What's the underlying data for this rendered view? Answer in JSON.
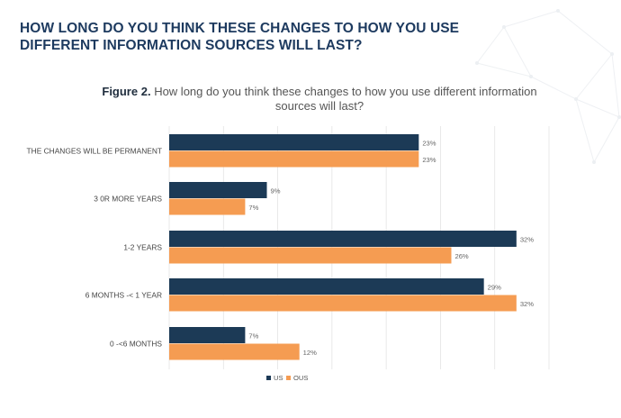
{
  "page": {
    "heading": "HOW LONG DO YOU THINK THESE CHANGES TO HOW YOU USE DIFFERENT INFORMATION SOURCES WILL LAST?",
    "figure_label": "Figure 2.",
    "figure_caption": "How long do you think these changes to how you use different information sources will last?"
  },
  "colors": {
    "us": "#1c3a56",
    "ous": "#f59c52",
    "heading": "#1d3a5f",
    "grid": "#e4e4e4"
  },
  "chart_data": {
    "type": "bar",
    "orientation": "horizontal",
    "categories": [
      "THE CHANGES WILL BE PERMANENT",
      "3 0R MORE YEARS",
      "1-2 YEARS",
      "6 MONTHS -< 1 YEAR",
      "0 -<6 MONTHS"
    ],
    "series": [
      {
        "name": "US",
        "values": [
          23,
          9,
          32,
          29,
          7
        ],
        "labels": [
          "23%",
          "9%",
          "32%",
          "29%",
          "7%"
        ]
      },
      {
        "name": "OUS",
        "values": [
          23,
          7,
          26,
          32,
          12
        ],
        "labels": [
          "23%",
          "7%",
          "26%",
          "32%",
          "12%"
        ]
      }
    ],
    "xlim": [
      0,
      35
    ],
    "grid": true,
    "legend_position": "bottom"
  }
}
